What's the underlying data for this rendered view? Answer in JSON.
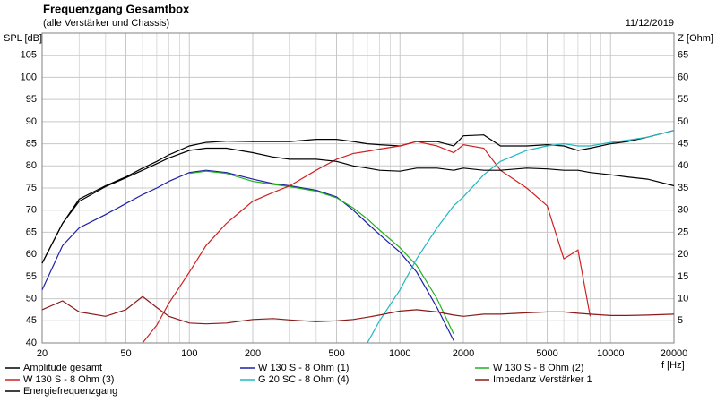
{
  "chart_data": {
    "type": "line",
    "title": "Frequenzgang Gesamtbox",
    "subtitle": "(alle Verstärker und Chassis)",
    "date": "11/12/2019",
    "ylabel": "SPL [dB]",
    "y2label": "Z [Ohm]",
    "xlabel": "f [Hz]",
    "xscale": "log",
    "grid": true,
    "xlim": [
      20,
      20000
    ],
    "xticks": [
      20,
      50,
      100,
      200,
      500,
      1000,
      2000,
      5000,
      10000,
      20000
    ],
    "xminorticks": [
      30,
      40,
      60,
      70,
      80,
      90,
      300,
      400,
      600,
      700,
      800,
      900,
      3000,
      4000,
      6000,
      7000,
      8000,
      9000
    ],
    "ylim": [
      40,
      110
    ],
    "yticks": [
      40,
      45,
      50,
      55,
      60,
      65,
      70,
      75,
      80,
      85,
      90,
      95,
      100,
      105
    ],
    "y2lim": [
      0,
      70
    ],
    "y2ticks": [
      5,
      10,
      15,
      20,
      25,
      30,
      35,
      40,
      45,
      50,
      55,
      60,
      65
    ],
    "x": [
      20,
      25,
      30,
      40,
      50,
      60,
      70,
      80,
      100,
      120,
      150,
      200,
      250,
      300,
      400,
      500,
      600,
      700,
      800,
      1000,
      1200,
      1500,
      1800,
      2000,
      2500,
      3000,
      4000,
      5000,
      6000,
      7000,
      8000,
      10000,
      12000,
      15000,
      20000
    ],
    "series": [
      {
        "name": "Amplitude gesamt",
        "color": "#000000",
        "values": [
          58,
          67,
          72.5,
          75.5,
          77.5,
          79.5,
          81,
          82.5,
          84.5,
          85.3,
          85.6,
          85.5,
          85.5,
          85.5,
          86,
          86,
          85.5,
          85,
          84.8,
          84.5,
          85.5,
          85.5,
          84.5,
          86.8,
          87,
          84.5,
          84.5,
          84.8,
          84.5,
          83.5,
          84,
          85,
          85.5,
          86.5,
          88
        ]
      },
      {
        "name": "W 130 S - 8 Ohm (1)",
        "color": "#1f1fa8",
        "values": [
          52,
          62,
          66,
          69,
          71.5,
          73.5,
          75,
          76.5,
          78.5,
          79,
          78.5,
          77,
          76,
          75.5,
          74.5,
          73,
          70,
          67,
          64.5,
          60.5,
          56,
          48,
          40.5,
          null,
          null,
          null,
          null,
          null,
          null,
          null,
          null,
          null,
          null,
          null,
          null
        ]
      },
      {
        "name": "W 130 S - 8 Ohm (2)",
        "color": "#22b022",
        "values": [
          null,
          null,
          null,
          null,
          null,
          null,
          null,
          null,
          78.3,
          78.8,
          78.3,
          76.5,
          75.8,
          75.3,
          74.3,
          72.8,
          70.5,
          68,
          65.5,
          61.5,
          57.5,
          50,
          42,
          null,
          null,
          null,
          null,
          null,
          null,
          null,
          null,
          null,
          null,
          null,
          null
        ]
      },
      {
        "name": "W 130 S - 8 Ohm (3)",
        "color": "#d02020",
        "values": [
          null,
          null,
          null,
          null,
          null,
          40,
          44,
          49,
          56,
          62,
          67,
          72,
          74,
          75.5,
          79,
          81.5,
          82.8,
          83.3,
          83.8,
          84.5,
          85.5,
          84.5,
          83,
          84.8,
          84,
          79,
          75,
          71,
          59,
          61,
          46,
          null,
          null,
          null,
          null
        ]
      },
      {
        "name": "G 20 SC - 8 Ohm (4)",
        "color": "#20b8c0",
        "values": [
          null,
          null,
          null,
          null,
          null,
          null,
          null,
          null,
          null,
          null,
          null,
          null,
          null,
          null,
          null,
          null,
          null,
          40,
          45,
          52,
          59,
          66,
          71,
          73,
          78,
          81,
          83.5,
          84.5,
          85,
          84.5,
          84.5,
          85.3,
          85.8,
          86.5,
          88
        ]
      },
      {
        "name": "Impedanz Verstärker 1",
        "color": "#8b1a1a",
        "axis": "y2",
        "values": [
          7.5,
          9.5,
          7,
          6,
          7.5,
          10.5,
          8,
          6,
          4.5,
          4.3,
          4.5,
          5.3,
          5.5,
          5.2,
          4.8,
          5,
          5.3,
          5.8,
          6.3,
          7.2,
          7.5,
          7,
          6.3,
          6,
          6.5,
          6.5,
          6.8,
          7,
          7,
          6.7,
          6.5,
          6.2,
          6.2,
          6.3,
          6.5
        ]
      },
      {
        "name": "Energiefrequenzgang",
        "color": "#000000",
        "values": [
          58,
          67,
          72,
          75.3,
          77.3,
          79,
          80.5,
          81.8,
          83.5,
          84,
          84,
          83,
          82,
          81.5,
          81.5,
          81,
          80,
          79.5,
          79,
          78.8,
          79.5,
          79.5,
          79,
          79.5,
          79,
          79,
          79.5,
          79.3,
          79,
          79,
          78.5,
          78,
          77.5,
          77,
          75.5
        ]
      }
    ]
  }
}
